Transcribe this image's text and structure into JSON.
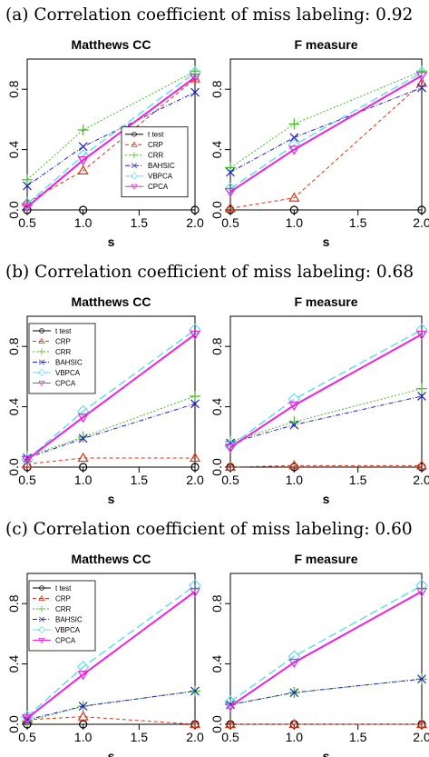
{
  "series_styles": [
    {
      "name": "t test",
      "color": "#000000",
      "dash": "",
      "marker": "circle",
      "width": 1
    },
    {
      "name": "CRP",
      "color": "#dd3311",
      "dash": "4,3",
      "marker": "triangle-up",
      "width": 1
    },
    {
      "name": "CRR",
      "color": "#44bb22",
      "dash": "2,2",
      "marker": "plus",
      "width": 1
    },
    {
      "name": "BAHSIC",
      "color": "#2222cc",
      "dash": "5,2,1,2",
      "marker": "x",
      "width": 1
    },
    {
      "name": "VBPCA",
      "color": "#66ddee",
      "dash": "9,4",
      "marker": "diamond",
      "width": 1.5
    },
    {
      "name": "CPCA",
      "color": "#ee22dd",
      "dash": "",
      "marker": "triangle-down",
      "width": 2
    }
  ],
  "chart_data": [
    {
      "caption": "(a) Correlation coefficient of miss labeling: 0.92",
      "panels": [
        {
          "type": "line",
          "title": "Matthews CC",
          "xlabel": "s",
          "x": [
            0.5,
            1.0,
            2.0
          ],
          "xlim": [
            0.5,
            2.0
          ],
          "ylim": [
            0,
            1
          ],
          "xticks": [
            "0.5",
            "1.0",
            "1.5",
            "2.0"
          ],
          "yticks": [
            "0.0",
            "0.4",
            "0.8"
          ],
          "legend": "center-right",
          "series": [
            {
              "name": "t test",
              "values": [
                0.0,
                0.0,
                0.0
              ]
            },
            {
              "name": "CRP",
              "values": [
                0.05,
                0.26,
                0.87
              ]
            },
            {
              "name": "CRR",
              "values": [
                0.2,
                0.53,
                0.92
              ]
            },
            {
              "name": "BAHSIC",
              "values": [
                0.16,
                0.42,
                0.78
              ]
            },
            {
              "name": "VBPCA",
              "values": [
                0.04,
                0.36,
                0.91
              ]
            },
            {
              "name": "CPCA",
              "values": [
                0.02,
                0.33,
                0.88
              ]
            }
          ]
        },
        {
          "type": "line",
          "title": "F measure",
          "xlabel": "s",
          "x": [
            0.5,
            1.0,
            2.0
          ],
          "xlim": [
            0.5,
            2.0
          ],
          "ylim": [
            0,
            1
          ],
          "xticks": [
            "0.5",
            "1.0",
            "1.5",
            "2.0"
          ],
          "yticks": [
            "0.0",
            "0.4",
            "0.8"
          ],
          "legend": "",
          "series": [
            {
              "name": "t test",
              "values": [
                0.0,
                0.0,
                0.0
              ]
            },
            {
              "name": "CRP",
              "values": [
                0.01,
                0.08,
                0.84
              ]
            },
            {
              "name": "CRR",
              "values": [
                0.28,
                0.57,
                0.92
              ]
            },
            {
              "name": "BAHSIC",
              "values": [
                0.25,
                0.48,
                0.81
              ]
            },
            {
              "name": "VBPCA",
              "values": [
                0.14,
                0.43,
                0.91
              ]
            },
            {
              "name": "CPCA",
              "values": [
                0.12,
                0.4,
                0.89
              ]
            }
          ]
        }
      ]
    },
    {
      "caption": "(b) Correlation coefficient of miss labeling: 0.68",
      "panels": [
        {
          "type": "line",
          "title": "Matthews CC",
          "xlabel": "s",
          "x": [
            0.5,
            1.0,
            2.0
          ],
          "xlim": [
            0.5,
            2.0
          ],
          "ylim": [
            0,
            1
          ],
          "xticks": [
            "0.5",
            "1.0",
            "1.5",
            "2.0"
          ],
          "yticks": [
            "0.0",
            "0.4",
            "0.8"
          ],
          "legend": "top-left",
          "series": [
            {
              "name": "t test",
              "values": [
                0.0,
                0.0,
                0.0
              ]
            },
            {
              "name": "CRP",
              "values": [
                0.02,
                0.06,
                0.06
              ]
            },
            {
              "name": "CRR",
              "values": [
                0.07,
                0.2,
                0.47
              ]
            },
            {
              "name": "BAHSIC",
              "values": [
                0.06,
                0.19,
                0.42
              ]
            },
            {
              "name": "VBPCA",
              "values": [
                0.05,
                0.37,
                0.91
              ]
            },
            {
              "name": "CPCA",
              "values": [
                0.05,
                0.33,
                0.88
              ]
            }
          ]
        },
        {
          "type": "line",
          "title": "F measure",
          "xlabel": "s",
          "x": [
            0.5,
            1.0,
            2.0
          ],
          "xlim": [
            0.5,
            2.0
          ],
          "ylim": [
            0,
            1
          ],
          "xticks": [
            "0.5",
            "1.0",
            "1.5",
            "2.0"
          ],
          "yticks": [
            "0.0",
            "0.4",
            "0.8"
          ],
          "legend": "",
          "series": [
            {
              "name": "t test",
              "values": [
                0.0,
                0.0,
                0.0
              ]
            },
            {
              "name": "CRP",
              "values": [
                0.0,
                0.01,
                0.01
              ]
            },
            {
              "name": "CRR",
              "values": [
                0.17,
                0.3,
                0.52
              ]
            },
            {
              "name": "BAHSIC",
              "values": [
                0.16,
                0.28,
                0.47
              ]
            },
            {
              "name": "VBPCA",
              "values": [
                0.14,
                0.45,
                0.91
              ]
            },
            {
              "name": "CPCA",
              "values": [
                0.13,
                0.41,
                0.88
              ]
            }
          ]
        }
      ]
    },
    {
      "caption": "(c) Correlation coefficient of miss labeling: 0.60",
      "panels": [
        {
          "type": "line",
          "title": "Matthews CC",
          "xlabel": "s",
          "x": [
            0.5,
            1.0,
            2.0
          ],
          "xlim": [
            0.5,
            2.0
          ],
          "ylim": [
            0,
            1
          ],
          "xticks": [
            "0.5",
            "1.0",
            "1.5",
            "2.0"
          ],
          "yticks": [
            "0.0",
            "0.4",
            "0.8"
          ],
          "legend": "top-left",
          "series": [
            {
              "name": "t test",
              "values": [
                0.0,
                0.0,
                0.0
              ]
            },
            {
              "name": "CRP",
              "values": [
                0.03,
                0.05,
                0.0
              ]
            },
            {
              "name": "CRR",
              "values": [
                0.02,
                0.12,
                0.22
              ]
            },
            {
              "name": "BAHSIC",
              "values": [
                0.03,
                0.12,
                0.22
              ]
            },
            {
              "name": "VBPCA",
              "values": [
                0.05,
                0.38,
                0.92
              ]
            },
            {
              "name": "CPCA",
              "values": [
                0.04,
                0.33,
                0.88
              ]
            }
          ]
        },
        {
          "type": "line",
          "title": "F measure",
          "xlabel": "s",
          "x": [
            0.5,
            1.0,
            2.0
          ],
          "xlim": [
            0.5,
            2.0
          ],
          "ylim": [
            0,
            1
          ],
          "xticks": [
            "0.5",
            "1.0",
            "1.5",
            "2.0"
          ],
          "yticks": [
            "0.0",
            "0.4",
            "0.8"
          ],
          "legend": "",
          "series": [
            {
              "name": "t test",
              "values": [
                0.0,
                0.0,
                0.0
              ]
            },
            {
              "name": "CRP",
              "values": [
                0.0,
                0.0,
                0.0
              ]
            },
            {
              "name": "CRR",
              "values": [
                0.13,
                0.21,
                0.3
              ]
            },
            {
              "name": "BAHSIC",
              "values": [
                0.13,
                0.21,
                0.3
              ]
            },
            {
              "name": "VBPCA",
              "values": [
                0.15,
                0.45,
                0.92
              ]
            },
            {
              "name": "CPCA",
              "values": [
                0.12,
                0.41,
                0.88
              ]
            }
          ]
        }
      ]
    }
  ]
}
